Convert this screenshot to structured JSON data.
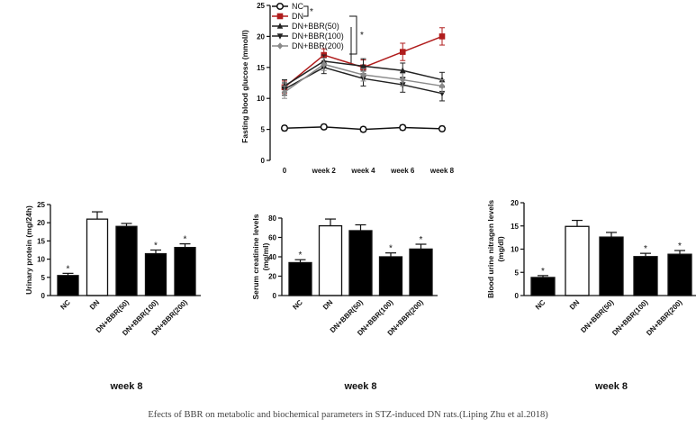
{
  "caption": "Efects of BBR on metabolic and biochemical parameters in STZ-induced DN rats.(Liping Zhu et al.2018)",
  "colors": {
    "NC": "#111111",
    "DN": "#b01c1c",
    "BBR50": "#222222",
    "BBR100": "#222222",
    "BBR200": "#8a8a8a"
  },
  "chart_data": [
    {
      "type": "line",
      "ylabel": "Fasting blood glucose (mmol/l)",
      "x": [
        "0",
        "week 2",
        "week 4",
        "week 6",
        "week 8"
      ],
      "ylim": [
        0,
        25
      ],
      "yticks": [
        "0",
        "5",
        "10",
        "15",
        "20",
        "25"
      ],
      "series": [
        {
          "name": "NC",
          "values": [
            5.2,
            5.4,
            5.0,
            5.3,
            5.1
          ],
          "err": [
            0.4,
            0.4,
            0.4,
            0.4,
            0.4
          ]
        },
        {
          "name": "DN",
          "values": [
            11.8,
            17.0,
            15.0,
            17.5,
            20.0
          ],
          "err": [
            1.0,
            1.0,
            1.2,
            1.4,
            1.4
          ]
        },
        {
          "name": "DN+BBR(50)",
          "values": [
            12.0,
            16.0,
            15.2,
            14.5,
            13.0
          ],
          "err": [
            1.0,
            1.0,
            1.2,
            1.2,
            1.2
          ]
        },
        {
          "name": "DN+BBR(100)",
          "values": [
            11.5,
            15.0,
            13.2,
            12.2,
            10.8
          ],
          "err": [
            1.0,
            1.0,
            1.2,
            1.2,
            1.2
          ]
        },
        {
          "name": "DN+BBR(200)",
          "values": [
            11.0,
            15.5,
            13.8,
            13.0,
            12.0
          ],
          "err": [
            1.0,
            1.0,
            1.0,
            1.0,
            1.0
          ]
        }
      ],
      "legend": [
        "NC",
        "DN",
        "DN+BBR(50)",
        "DN+BBR(100)",
        "DN+BBR(200)"
      ],
      "sig": [
        "*",
        "*"
      ]
    },
    {
      "type": "bar",
      "ylabel": "Urinary protein (mg/24h)",
      "xlabel": "week 8",
      "categories": [
        "NC",
        "DN",
        "DN+BBR(50)",
        "DN+BBR(100)",
        "DN+BBR(200)"
      ],
      "values": [
        5.5,
        21.0,
        19.0,
        11.5,
        13.2
      ],
      "err": [
        0.6,
        2.0,
        0.8,
        1.0,
        1.0
      ],
      "stars": [
        "*",
        "",
        "",
        "*",
        "*"
      ],
      "ylim": [
        0,
        25
      ],
      "yticks": [
        "0",
        "5",
        "10",
        "15",
        "20",
        "25"
      ]
    },
    {
      "type": "bar",
      "ylabel": "Serum creatinine levels (mg/ml)",
      "xlabel": "week 8",
      "categories": [
        "NC",
        "DN",
        "DN+BBR(50)",
        "DN+BBR(100)",
        "DN+BBR(200)"
      ],
      "values": [
        34,
        72,
        67,
        40,
        48
      ],
      "err": [
        3,
        7,
        6,
        4,
        5
      ],
      "stars": [
        "*",
        "",
        "",
        "*",
        "*"
      ],
      "ylim": [
        0,
        80
      ],
      "yticks": [
        "0",
        "20",
        "40",
        "60",
        "80"
      ]
    },
    {
      "type": "bar",
      "ylabel": "Blood urine nitragen levels (mg/dl)",
      "xlabel": "week 8",
      "categories": [
        "NC",
        "DN",
        "DN+BBR(50)",
        "DN+BBR(100)",
        "DN+BBR(200)"
      ],
      "values": [
        3.9,
        14.9,
        12.6,
        8.4,
        8.9
      ],
      "err": [
        0.4,
        1.3,
        1.0,
        0.7,
        0.8
      ],
      "stars": [
        "*",
        "",
        "",
        "*",
        "*"
      ],
      "ylim": [
        0,
        20
      ],
      "yticks": [
        "0",
        "5",
        "10",
        "15",
        "20"
      ]
    }
  ]
}
